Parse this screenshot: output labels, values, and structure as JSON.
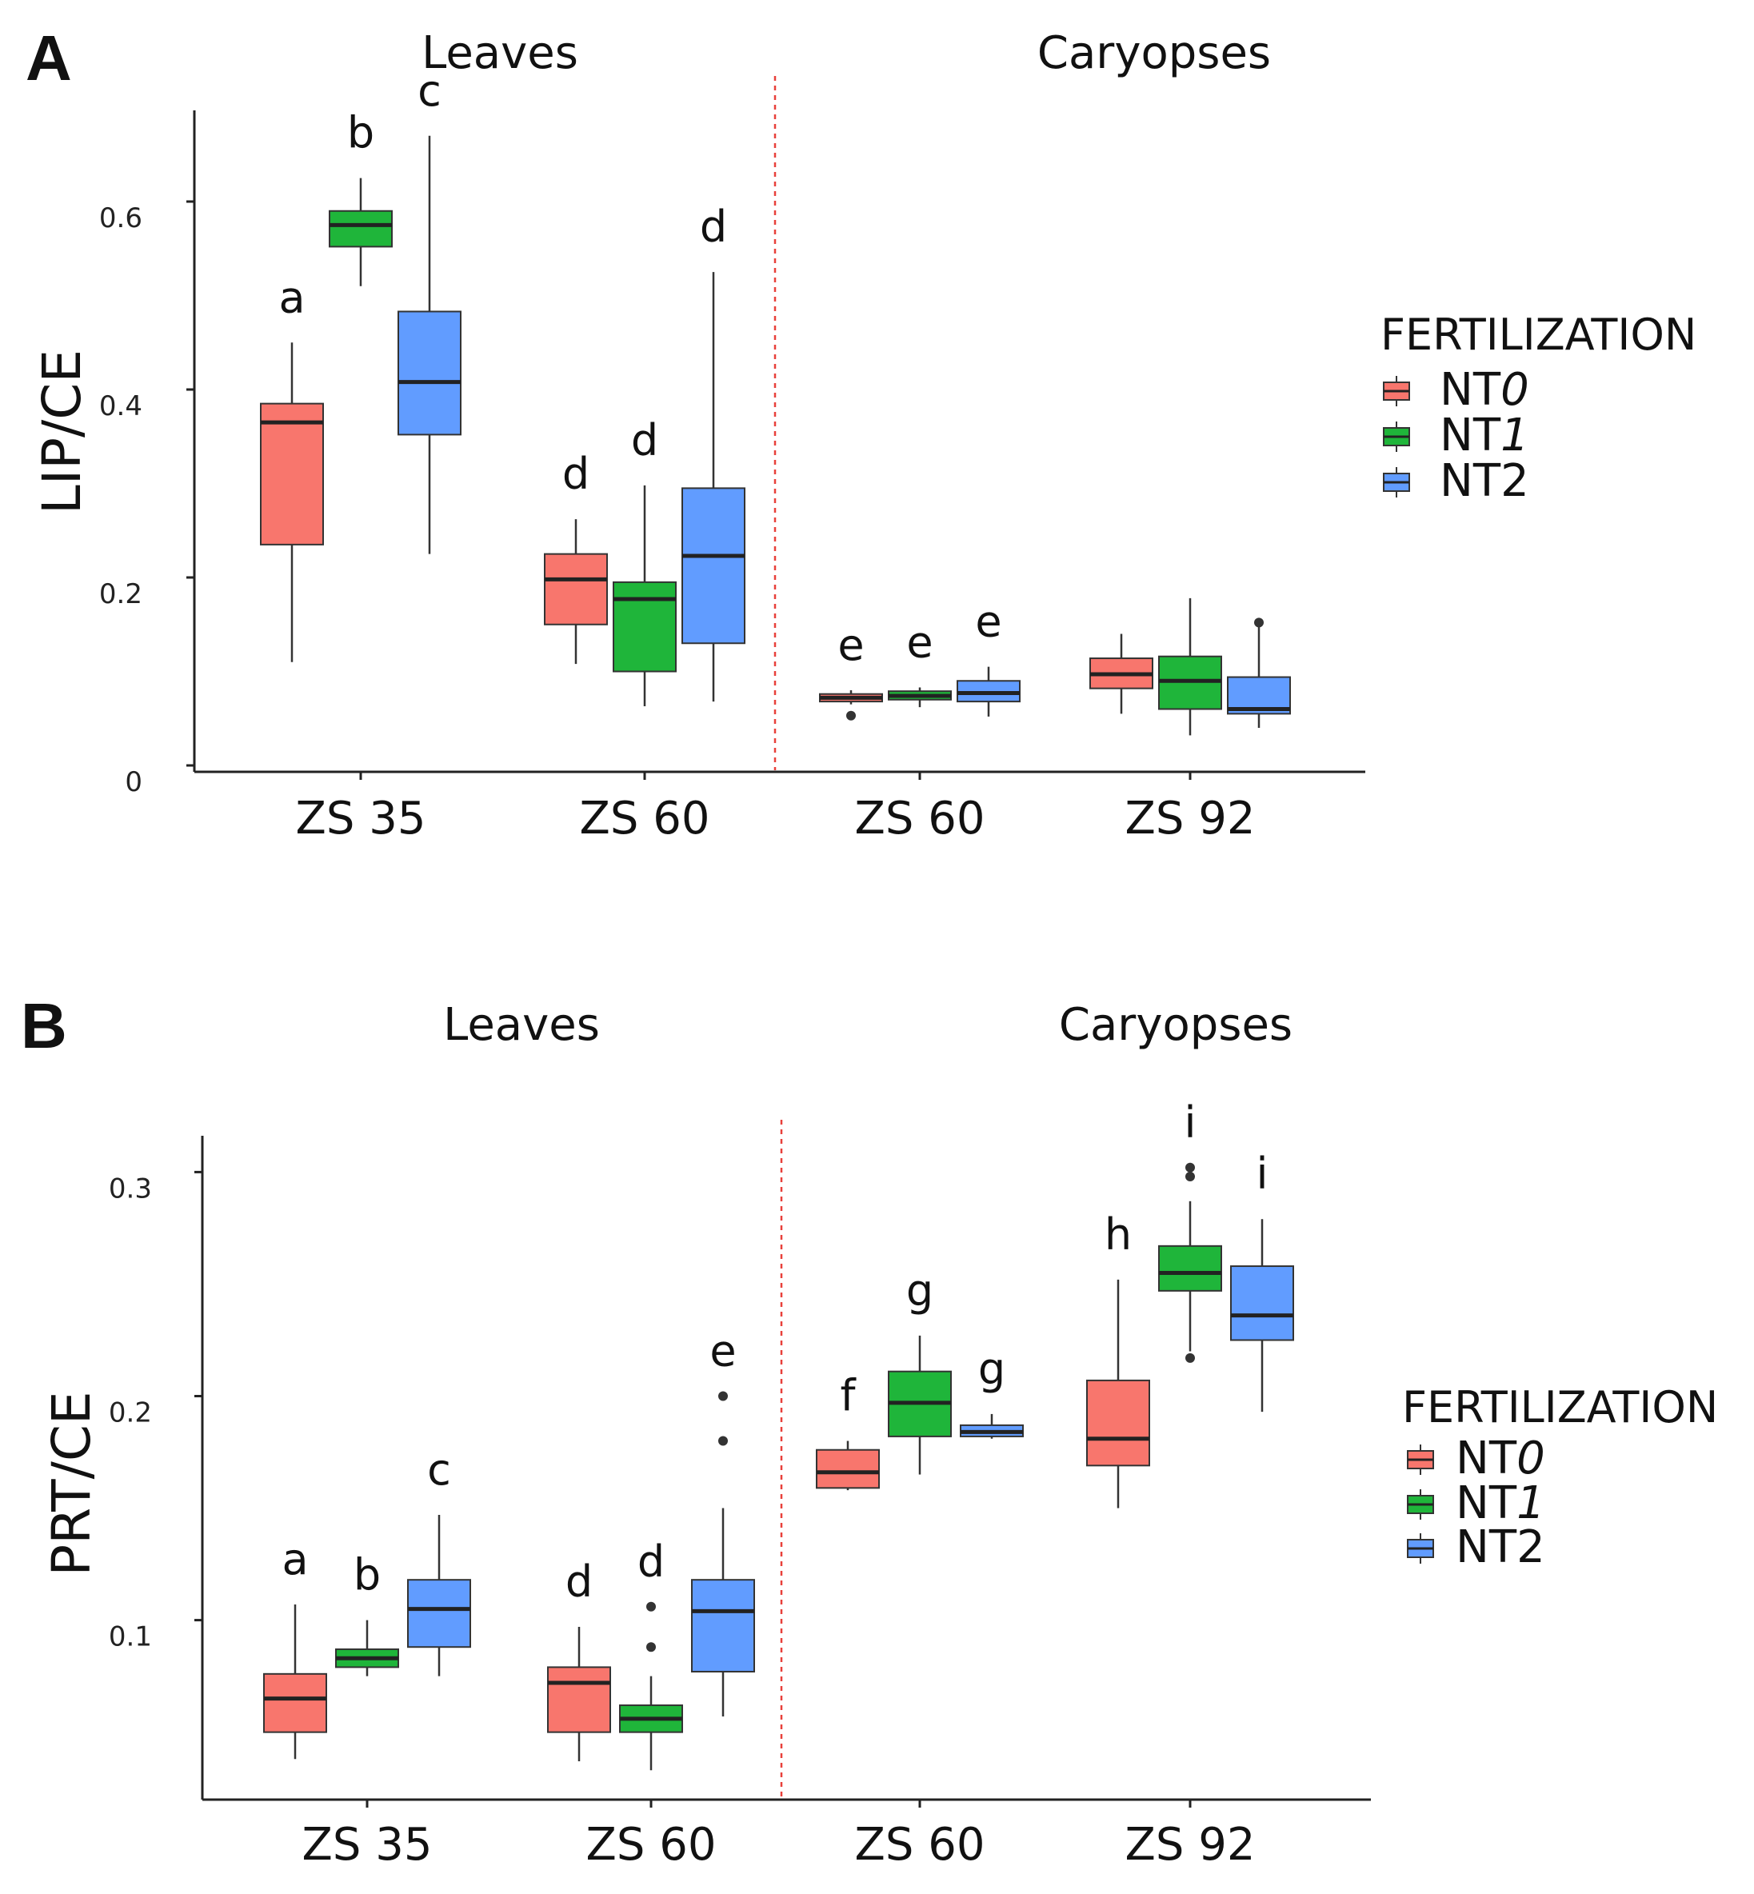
{
  "colors": {
    "NT0": "#f8766d",
    "NT1": "#1fb53a",
    "NT2": "#619cff",
    "divider": "#e8403a"
  },
  "legend": {
    "title": "FERTILIZATION",
    "items": [
      {
        "key": "NT0",
        "prefix": "NT",
        "suffix": "0",
        "italic": true
      },
      {
        "key": "NT1",
        "prefix": "NT",
        "suffix": "1",
        "italic": true
      },
      {
        "key": "NT2",
        "prefix": "NT2",
        "suffix": "",
        "italic": false
      }
    ]
  },
  "chart_data": [
    {
      "type": "boxplot",
      "panel": "A",
      "ylabel": "LIP/CE",
      "yticks": [
        0,
        0.2,
        0.4,
        0.6
      ],
      "ytick_labels": [
        "0",
        "0.2",
        "0.4",
        "0.6"
      ],
      "ylim": [
        0,
        0.7
      ],
      "groups": [
        {
          "title": "Leaves",
          "categories": [
            "ZS 35",
            "ZS 60"
          ]
        },
        {
          "title": "Caryopses",
          "categories": [
            "ZS 60",
            "ZS 92"
          ]
        }
      ],
      "boxes": [
        {
          "category": "ZS 35",
          "series": "NT0",
          "min": 0.11,
          "q1": 0.235,
          "median": 0.365,
          "q3": 0.385,
          "max": 0.45,
          "outliers": [],
          "letter": "a"
        },
        {
          "category": "ZS 35",
          "series": "NT1",
          "min": 0.51,
          "q1": 0.552,
          "median": 0.575,
          "q3": 0.59,
          "max": 0.625,
          "outliers": [],
          "letter": "b"
        },
        {
          "category": "ZS 35",
          "series": "NT2",
          "min": 0.225,
          "q1": 0.352,
          "median": 0.408,
          "q3": 0.483,
          "max": 0.67,
          "outliers": [],
          "letter": "c"
        },
        {
          "category": "ZS 60 (Leaves)",
          "series": "NT0",
          "min": 0.108,
          "q1": 0.15,
          "median": 0.198,
          "q3": 0.225,
          "max": 0.262,
          "outliers": [],
          "letter": "d"
        },
        {
          "category": "ZS 60 (Leaves)",
          "series": "NT1",
          "min": 0.063,
          "q1": 0.1,
          "median": 0.177,
          "q3": 0.195,
          "max": 0.298,
          "outliers": [],
          "letter": "d"
        },
        {
          "category": "ZS 60 (Leaves)",
          "series": "NT2",
          "min": 0.068,
          "q1": 0.13,
          "median": 0.223,
          "q3": 0.295,
          "max": 0.525,
          "outliers": [],
          "letter": "d"
        },
        {
          "category": "ZS 60 (Caryopses)",
          "series": "NT0",
          "min": 0.065,
          "q1": 0.068,
          "median": 0.072,
          "q3": 0.076,
          "max": 0.08,
          "outliers": [
            0.053
          ],
          "letter": "e"
        },
        {
          "category": "ZS 60 (Caryopses)",
          "series": "NT1",
          "min": 0.062,
          "q1": 0.07,
          "median": 0.074,
          "q3": 0.079,
          "max": 0.083,
          "outliers": [],
          "letter": "e"
        },
        {
          "category": "ZS 60 (Caryopses)",
          "series": "NT2",
          "min": 0.052,
          "q1": 0.068,
          "median": 0.077,
          "q3": 0.09,
          "max": 0.105,
          "outliers": [],
          "letter": "e"
        },
        {
          "category": "ZS 92",
          "series": "NT0",
          "min": 0.055,
          "q1": 0.082,
          "median": 0.097,
          "q3": 0.114,
          "max": 0.14,
          "outliers": [],
          "letter": ""
        },
        {
          "category": "ZS 92",
          "series": "NT1",
          "min": 0.032,
          "q1": 0.06,
          "median": 0.09,
          "q3": 0.116,
          "max": 0.178,
          "outliers": [],
          "letter": ""
        },
        {
          "category": "ZS 92",
          "series": "NT2",
          "min": 0.04,
          "q1": 0.055,
          "median": 0.06,
          "q3": 0.094,
          "max": 0.15,
          "outliers": [
            0.152
          ],
          "letter": ""
        }
      ]
    },
    {
      "type": "boxplot",
      "panel": "B",
      "ylabel": "PRT/CE",
      "yticks": [
        0.1,
        0.2,
        0.3
      ],
      "ytick_labels": [
        "0.1",
        "0.2",
        "0.3"
      ],
      "ylim": [
        0.023,
        0.317
      ],
      "groups": [
        {
          "title": "Leaves",
          "categories": [
            "ZS 35",
            "ZS 60"
          ]
        },
        {
          "title": "Caryopses",
          "categories": [
            "ZS 60",
            "ZS 92"
          ]
        }
      ],
      "boxes": [
        {
          "category": "ZS 35",
          "series": "NT0",
          "min": 0.038,
          "q1": 0.05,
          "median": 0.065,
          "q3": 0.076,
          "max": 0.107,
          "outliers": [],
          "letter": "a"
        },
        {
          "category": "ZS 35",
          "series": "NT1",
          "min": 0.075,
          "q1": 0.079,
          "median": 0.083,
          "q3": 0.087,
          "max": 0.1,
          "outliers": [],
          "letter": "b"
        },
        {
          "category": "ZS 35",
          "series": "NT2",
          "min": 0.075,
          "q1": 0.088,
          "median": 0.105,
          "q3": 0.118,
          "max": 0.147,
          "outliers": [],
          "letter": "c"
        },
        {
          "category": "ZS 60 (Leaves)",
          "series": "NT0",
          "min": 0.037,
          "q1": 0.05,
          "median": 0.072,
          "q3": 0.079,
          "max": 0.097,
          "outliers": [],
          "letter": "d"
        },
        {
          "category": "ZS 60 (Leaves)",
          "series": "NT1",
          "min": 0.033,
          "q1": 0.05,
          "median": 0.056,
          "q3": 0.062,
          "max": 0.075,
          "outliers": [
            0.088,
            0.106
          ],
          "letter": "d"
        },
        {
          "category": "ZS 60 (Leaves)",
          "series": "NT2",
          "min": 0.057,
          "q1": 0.077,
          "median": 0.104,
          "q3": 0.118,
          "max": 0.15,
          "outliers": [
            0.18,
            0.2
          ],
          "letter": "e"
        },
        {
          "category": "ZS 60 (Caryopses)",
          "series": "NT0",
          "min": 0.158,
          "q1": 0.159,
          "median": 0.166,
          "q3": 0.176,
          "max": 0.18,
          "outliers": [],
          "letter": "f"
        },
        {
          "category": "ZS 60 (Caryopses)",
          "series": "NT1",
          "min": 0.165,
          "q1": 0.182,
          "median": 0.197,
          "q3": 0.211,
          "max": 0.227,
          "outliers": [],
          "letter": "g"
        },
        {
          "category": "ZS 60 (Caryopses)",
          "series": "NT2",
          "min": 0.181,
          "q1": 0.182,
          "median": 0.184,
          "q3": 0.187,
          "max": 0.192,
          "outliers": [],
          "letter": "g"
        },
        {
          "category": "ZS 92",
          "series": "NT0",
          "min": 0.15,
          "q1": 0.169,
          "median": 0.181,
          "q3": 0.207,
          "max": 0.252,
          "outliers": [],
          "letter": "h"
        },
        {
          "category": "ZS 92",
          "series": "NT1",
          "min": 0.22,
          "q1": 0.247,
          "median": 0.255,
          "q3": 0.267,
          "max": 0.287,
          "outliers": [
            0.217,
            0.298,
            0.302
          ],
          "letter": "i"
        },
        {
          "category": "ZS 92",
          "series": "NT2",
          "min": 0.193,
          "q1": 0.225,
          "median": 0.236,
          "q3": 0.258,
          "max": 0.279,
          "outliers": [],
          "letter": "i"
        }
      ]
    }
  ]
}
